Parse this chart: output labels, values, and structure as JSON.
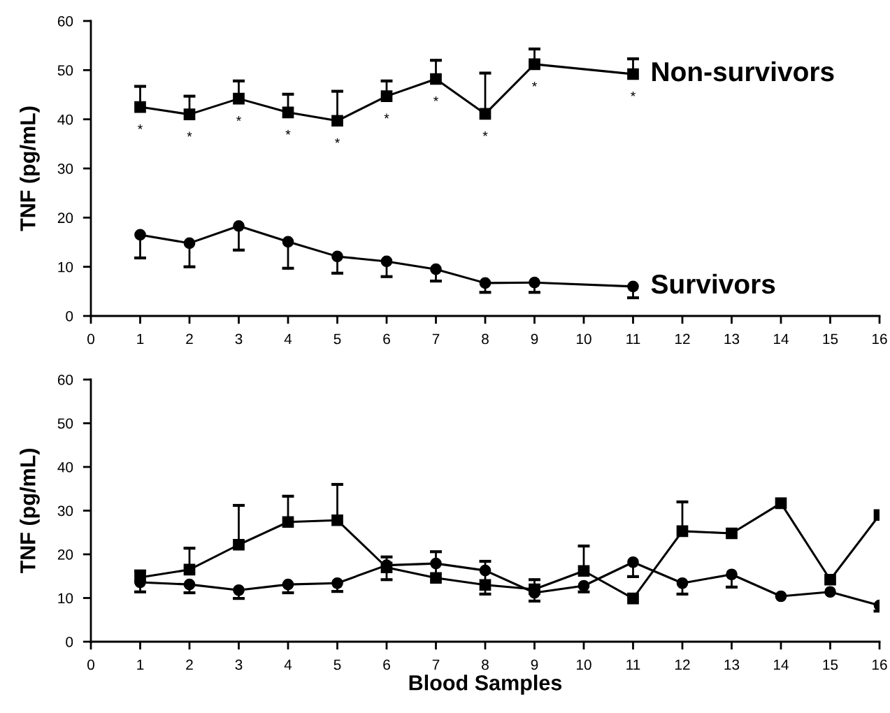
{
  "chart_data": [
    {
      "type": "line",
      "ylabel": "TNF (pg/mL)",
      "xlim": [
        0,
        16
      ],
      "xticks": [
        0,
        1,
        2,
        3,
        4,
        5,
        6,
        7,
        8,
        9,
        10,
        11,
        12,
        13,
        14,
        15,
        16
      ],
      "ylim": [
        0,
        60
      ],
      "yticks": [
        0,
        10,
        20,
        30,
        40,
        50,
        60
      ],
      "grid": false,
      "legend": false,
      "series": [
        {
          "name": "Non-survivors",
          "color": "#000000",
          "marker": "square",
          "x": [
            1,
            2,
            3,
            4,
            5,
            6,
            7,
            8,
            9,
            11
          ],
          "values": [
            42.5,
            41,
            44.2,
            41.4,
            39.7,
            44.7,
            48.2,
            41.1,
            51.2,
            49.2
          ],
          "errors": [
            [
              42.5,
              46.7
            ],
            [
              41,
              44.7
            ],
            [
              44.2,
              47.8
            ],
            [
              41.4,
              45.1
            ],
            [
              39.7,
              45.7
            ],
            [
              44.7,
              47.8
            ],
            [
              48.2,
              52
            ],
            [
              41.1,
              49.4
            ],
            [
              51.2,
              54.3
            ],
            [
              49.2,
              52.3
            ]
          ]
        },
        {
          "name": "Survivors",
          "color": "#000000",
          "marker": "circle",
          "x": [
            1,
            2,
            3,
            4,
            5,
            6,
            7,
            8,
            9,
            11
          ],
          "values": [
            16.5,
            14.8,
            18.3,
            15.1,
            12.1,
            11.1,
            9.5,
            6.7,
            6.8,
            6
          ],
          "errors": [
            [
              11.8,
              16.5
            ],
            [
              10,
              14.8
            ],
            [
              13.4,
              18.3
            ],
            [
              9.7,
              15.1
            ],
            [
              8.7,
              12.1
            ],
            [
              8,
              11.1
            ],
            [
              7.1,
              9.5
            ],
            [
              4.8,
              6.7
            ],
            [
              4.8,
              6.8
            ],
            [
              3.7,
              6
            ]
          ]
        }
      ],
      "annotations": [
        "*",
        "*",
        "*",
        "*",
        "*",
        "*",
        "*",
        "*",
        "*",
        "*"
      ]
    },
    {
      "type": "line",
      "ylabel": "TNF (pg/mL)",
      "xlabel": "Blood Samples",
      "xlim": [
        0,
        16
      ],
      "xticks": [
        0,
        1,
        2,
        3,
        4,
        5,
        6,
        7,
        8,
        9,
        10,
        11,
        12,
        13,
        14,
        15,
        16
      ],
      "ylim": [
        0,
        60
      ],
      "yticks": [
        0,
        10,
        20,
        30,
        40,
        50,
        60
      ],
      "grid": false,
      "legend": false,
      "series": [
        {
          "color": "#000000",
          "marker": "square",
          "x": [
            1,
            2,
            3,
            4,
            5,
            6,
            7,
            8,
            9,
            10,
            11,
            12,
            13,
            14,
            15,
            16
          ],
          "values": [
            14.7,
            16.5,
            22.2,
            27.4,
            27.8,
            17,
            14.6,
            13,
            12,
            16.2,
            9.9,
            25.3,
            24.8,
            31.7,
            14.2,
            29
          ],
          "errors": [
            [
              14.7,
              16.2
            ],
            [
              16.5,
              21.4
            ],
            [
              22.2,
              31.2
            ],
            [
              27.4,
              33.3
            ],
            [
              27.8,
              36
            ],
            [
              17,
              19.4
            ],
            [
              14.6,
              20.6
            ],
            [
              10.9,
              18.4
            ],
            [
              12,
              14.2
            ],
            [
              16.2,
              21.9
            ],
            null,
            [
              25.3,
              32
            ],
            null,
            null,
            null,
            null
          ]
        },
        {
          "color": "#000000",
          "marker": "circle",
          "x": [
            1,
            2,
            3,
            4,
            5,
            6,
            7,
            8,
            9,
            10,
            11,
            12,
            13,
            14,
            15,
            16
          ],
          "values": [
            13.6,
            13.1,
            11.8,
            13.1,
            13.4,
            17.5,
            17.9,
            16.3,
            11.2,
            12.8,
            18.2,
            13.4,
            15.4,
            10.4,
            11.4,
            8.3
          ],
          "errors": [
            [
              11.4,
              13.6
            ],
            [
              11.2,
              13.1
            ],
            [
              9.9,
              11.8
            ],
            [
              11.2,
              13.1
            ],
            [
              11.5,
              13.4
            ],
            [
              14.2,
              17.5
            ],
            null,
            null,
            [
              9.3,
              11.2
            ],
            [
              11.4,
              12.8
            ],
            [
              14.9,
              18.2
            ],
            [
              10.9,
              13.4
            ],
            [
              12.5,
              15.4
            ],
            null,
            null,
            [
              7,
              8.3
            ]
          ]
        }
      ]
    }
  ]
}
